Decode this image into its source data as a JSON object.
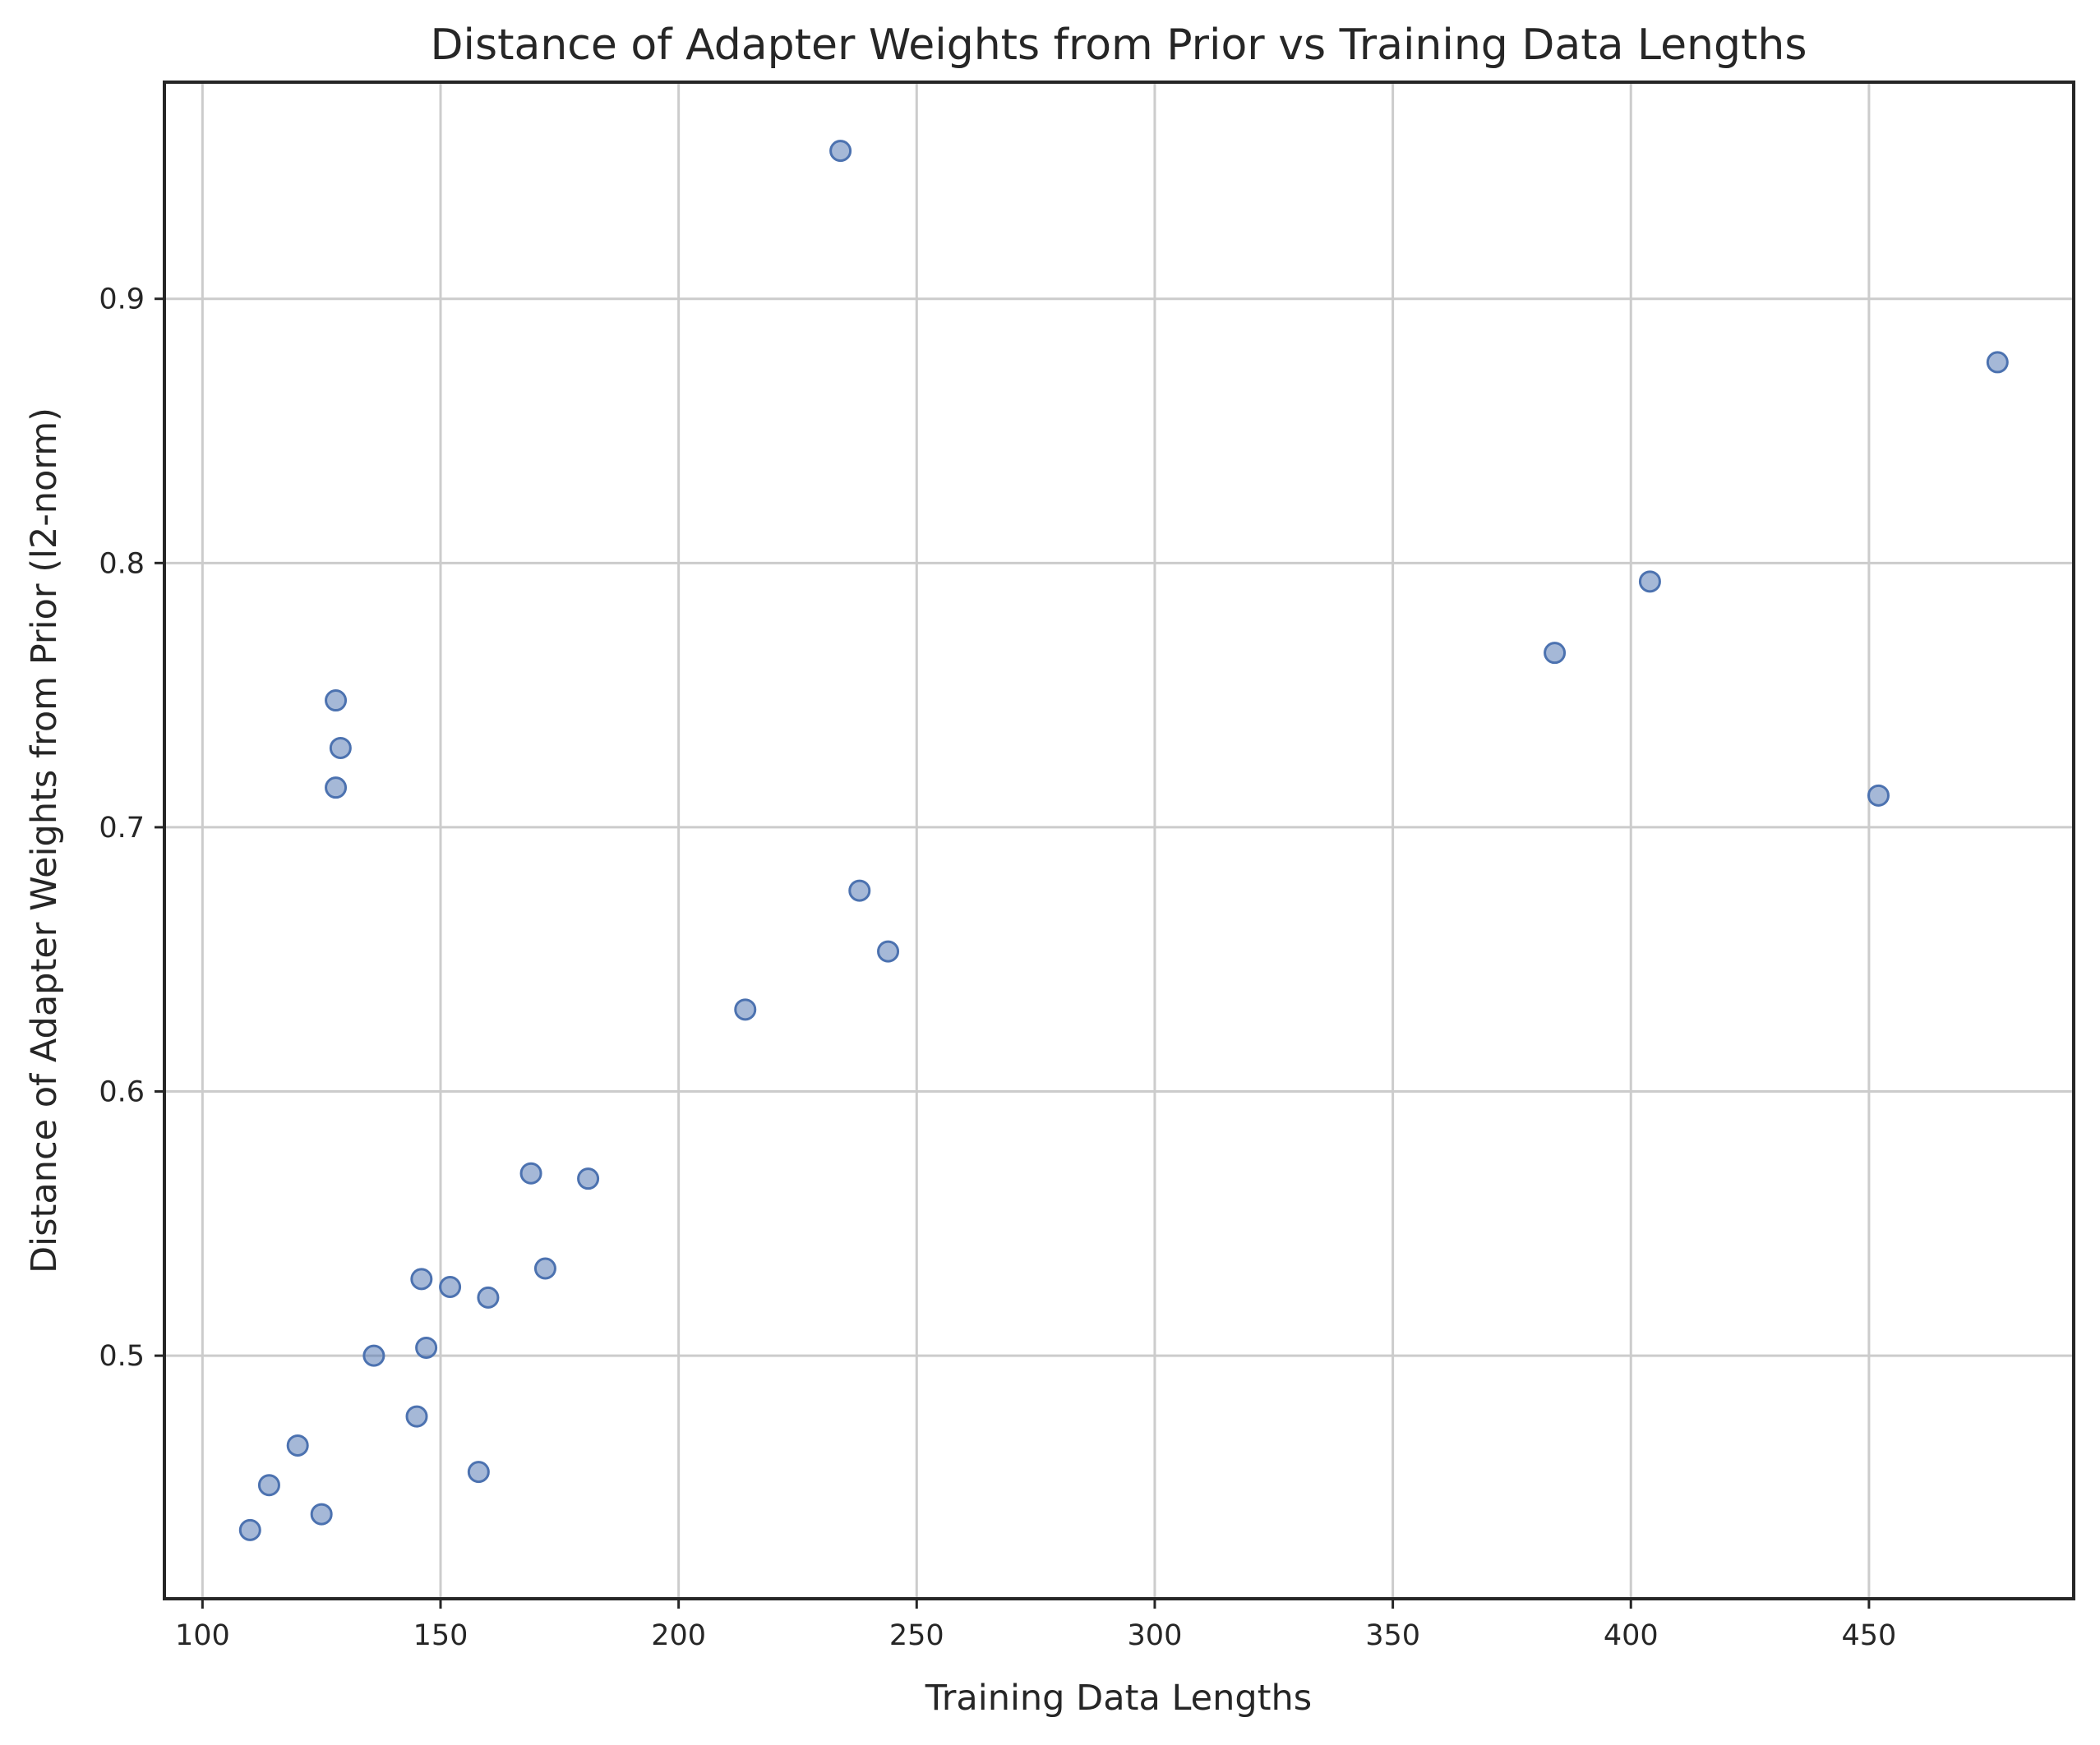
{
  "chart_data": {
    "type": "scatter",
    "title": "Distance of Adapter Weights from Prior vs Training Data Lengths",
    "xlabel": "Training Data Lengths",
    "ylabel": "Distance of Adapter Weights from Prior (l2-norm)",
    "xlim": [
      92,
      493
    ],
    "ylim": [
      0.408,
      0.982
    ],
    "xticks": [
      100,
      150,
      200,
      250,
      300,
      350,
      400,
      450
    ],
    "yticks": [
      0.5,
      0.6,
      0.7,
      0.8,
      0.9
    ],
    "xtick_labels": [
      "100",
      "150",
      "200",
      "250",
      "300",
      "350",
      "400",
      "450"
    ],
    "ytick_labels": [
      "0.5",
      "0.6",
      "0.7",
      "0.8",
      "0.9"
    ],
    "grid": true,
    "color": "#4c72b0",
    "points": [
      {
        "x": 110,
        "y": 0.434
      },
      {
        "x": 114,
        "y": 0.451
      },
      {
        "x": 120,
        "y": 0.466
      },
      {
        "x": 125,
        "y": 0.44
      },
      {
        "x": 128,
        "y": 0.748
      },
      {
        "x": 129,
        "y": 0.73
      },
      {
        "x": 128,
        "y": 0.715
      },
      {
        "x": 136,
        "y": 0.5
      },
      {
        "x": 145,
        "y": 0.477
      },
      {
        "x": 146,
        "y": 0.529
      },
      {
        "x": 147,
        "y": 0.503
      },
      {
        "x": 152,
        "y": 0.526
      },
      {
        "x": 158,
        "y": 0.456
      },
      {
        "x": 160,
        "y": 0.522
      },
      {
        "x": 169,
        "y": 0.569
      },
      {
        "x": 172,
        "y": 0.533
      },
      {
        "x": 181,
        "y": 0.567
      },
      {
        "x": 214,
        "y": 0.631
      },
      {
        "x": 234,
        "y": 0.956
      },
      {
        "x": 238,
        "y": 0.676
      },
      {
        "x": 244,
        "y": 0.653
      },
      {
        "x": 384,
        "y": 0.766
      },
      {
        "x": 404,
        "y": 0.793
      },
      {
        "x": 452,
        "y": 0.712
      },
      {
        "x": 477,
        "y": 0.876
      }
    ]
  }
}
